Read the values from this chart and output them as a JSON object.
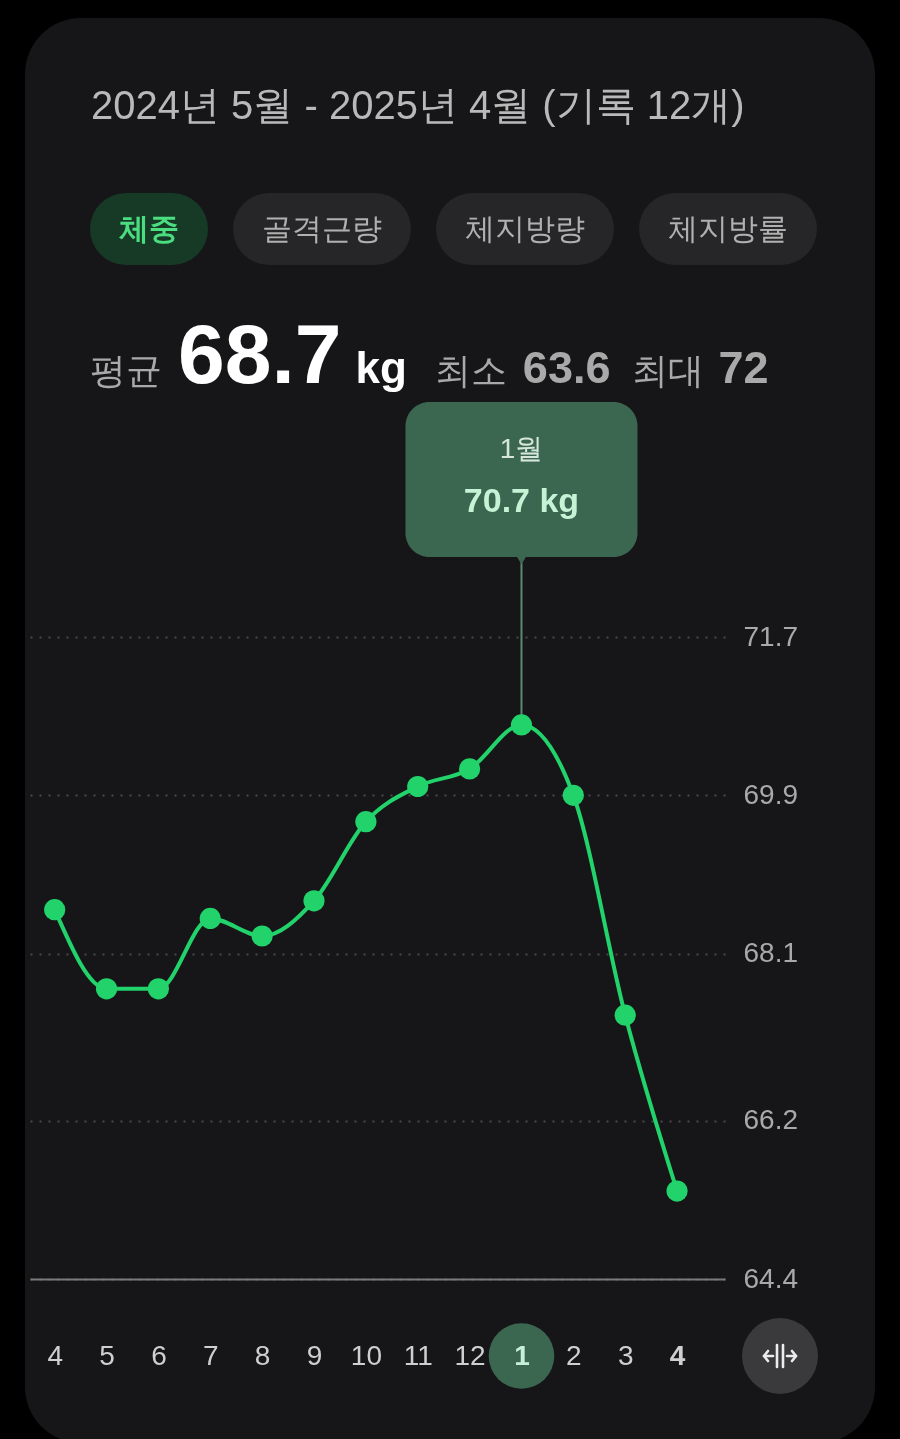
{
  "chart_data": {
    "type": "line",
    "title": "2024년 5월 - 2025년 4월 (기록 12개)",
    "subtitle": "평균 68.7 kg 최소 63.6 최대 72",
    "annotations": [
      "체중",
      "골격근량",
      "체지방량",
      "체지방률",
      "1월",
      {
        "text": "70.7 kg",
        "x": "1",
        "y": 70.7
      }
    ],
    "categories": [
      "4",
      "5",
      "6",
      "7",
      "8",
      "9",
      "10",
      "11",
      "12",
      "1",
      "2",
      "3",
      "4"
    ],
    "series": [
      {
        "color": "#22d36b",
        "values": [
          68.6,
          67.7,
          67.7,
          68.5,
          68.3,
          68.7,
          69.6,
          70.0,
          70.2,
          70.7,
          69.9,
          67.4,
          65.4
        ]
      }
    ],
    "ylim": [
      64.4,
      71.7
    ],
    "yticks": [
      64.4,
      66.2,
      68.1,
      69.9,
      71.7
    ],
    "grid": "y",
    "marker": "circle",
    "line_style": "solid"
  }
}
